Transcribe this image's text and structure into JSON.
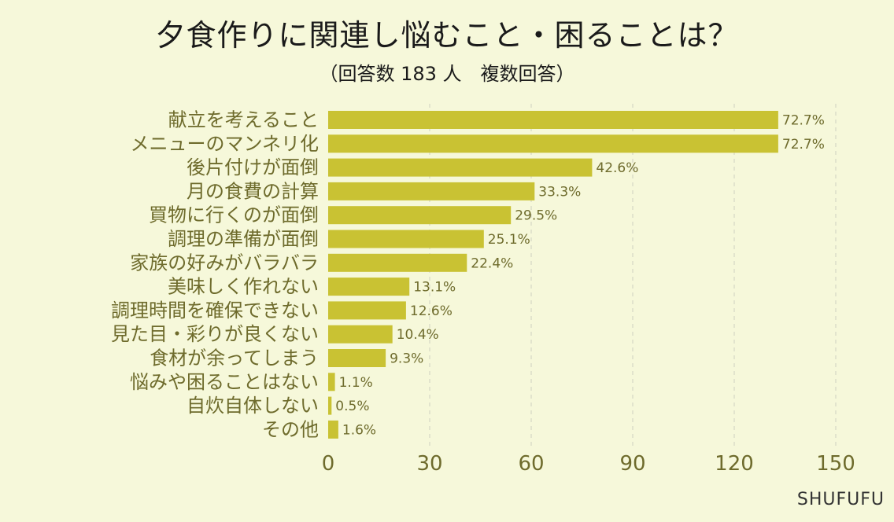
{
  "header": {
    "title": "夕食作りに関連し悩むこと・困ることは？",
    "subtitle": "（回答数 183 人　複数回答）"
  },
  "footer": {
    "credit": "SHUFUFU"
  },
  "colors": {
    "bar": "#c9c233",
    "background": "#f6f8da",
    "label": "#6e6b2c",
    "grid": "#cfcfc0"
  },
  "chart_data": {
    "type": "bar",
    "orientation": "horizontal",
    "categories": [
      "献立を考えること",
      "メニューのマンネリ化",
      "後片付けが面倒",
      "月の食費の計算",
      "買物に行くのが面倒",
      "調理の準備が面倒",
      "家族の好みがバラバラ",
      "美味しく作れない",
      "調理時間を確保できない",
      "見た目・彩りが良くない",
      "食材が余ってしまう",
      "悩みや困ることはない",
      "自炊自体しない",
      "その他"
    ],
    "values": [
      133,
      133,
      78,
      61,
      54,
      46,
      41,
      24,
      23,
      19,
      17,
      2,
      1,
      3
    ],
    "value_labels": [
      "72.7%",
      "72.7%",
      "42.6%",
      "33.3%",
      "29.5%",
      "25.1%",
      "22.4%",
      "13.1%",
      "12.6%",
      "10.4%",
      "9.3%",
      "1.1%",
      "0.5%",
      "1.6%"
    ],
    "xlim": [
      0,
      150
    ],
    "xticks": [
      "0",
      "30",
      "60",
      "90",
      "120",
      "150"
    ],
    "grid": "vertical dashed",
    "legend": "none"
  }
}
